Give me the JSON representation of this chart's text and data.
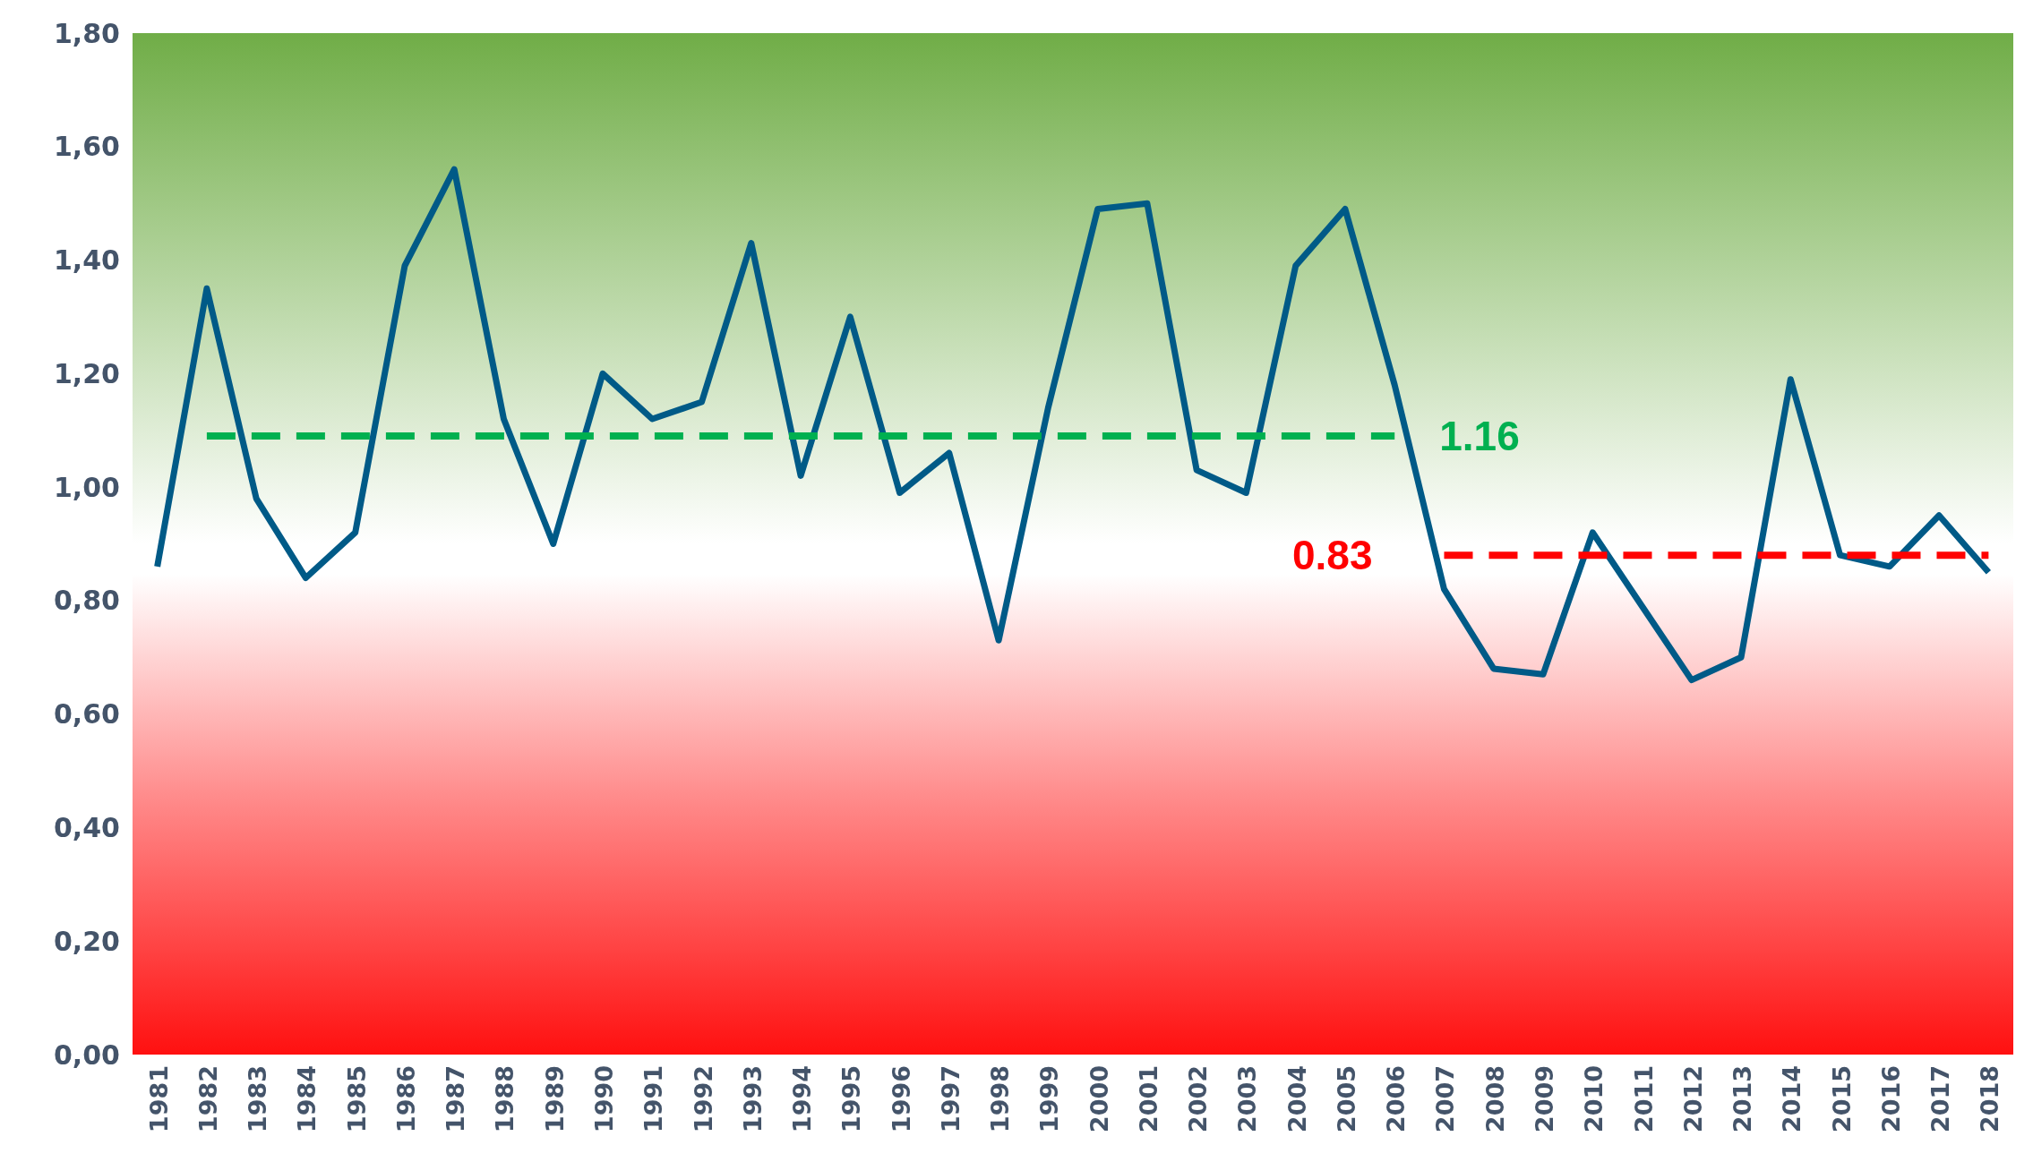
{
  "chart_data": {
    "type": "line",
    "categories": [
      "1981",
      "1982",
      "1983",
      "1984",
      "1985",
      "1986",
      "1987",
      "1988",
      "1989",
      "1990",
      "1991",
      "1992",
      "1993",
      "1994",
      "1995",
      "1996",
      "1997",
      "1998",
      "1999",
      "2000",
      "2001",
      "2002",
      "2003",
      "2004",
      "2005",
      "2006",
      "2007",
      "2008",
      "2009",
      "2010",
      "2011",
      "2012",
      "2013",
      "2014",
      "2015",
      "2016",
      "2017",
      "2018"
    ],
    "series": [
      {
        "color": "#005a87",
        "line_style": "solid",
        "values": [
          0.86,
          1.35,
          0.98,
          0.84,
          0.92,
          1.39,
          1.56,
          1.12,
          0.9,
          1.2,
          1.12,
          1.15,
          1.43,
          1.02,
          1.3,
          0.99,
          1.06,
          0.73,
          1.14,
          1.49,
          1.5,
          1.03,
          0.99,
          1.39,
          1.49,
          1.18,
          0.82,
          0.68,
          0.67,
          0.92,
          0.79,
          0.66,
          0.7,
          1.19,
          0.88,
          0.86,
          0.95,
          0.85
        ]
      },
      {
        "color": "#00b050",
        "line_style": "dashed",
        "values": [
          null,
          1.09,
          1.09,
          1.09,
          1.09,
          1.09,
          1.09,
          1.09,
          1.09,
          1.09,
          1.09,
          1.09,
          1.09,
          1.09,
          1.09,
          1.09,
          1.09,
          1.09,
          1.09,
          1.09,
          1.09,
          1.09,
          1.09,
          1.09,
          1.09,
          1.09,
          null,
          null,
          null,
          null,
          null,
          null,
          null,
          null,
          null,
          null,
          null,
          null
        ]
      },
      {
        "color": "#ff0000",
        "line_style": "dashed",
        "values": [
          null,
          null,
          null,
          null,
          null,
          null,
          null,
          null,
          null,
          null,
          null,
          null,
          null,
          null,
          null,
          null,
          null,
          null,
          null,
          null,
          null,
          null,
          null,
          null,
          null,
          null,
          0.88,
          0.88,
          0.88,
          0.88,
          0.88,
          0.88,
          0.88,
          0.88,
          0.88,
          0.88,
          0.88,
          0.88
        ]
      }
    ],
    "annotations": [
      "1.16",
      "0.83"
    ],
    "ylim": [
      0,
      1.8
    ],
    "yticks": [
      {
        "value": 0,
        "label": "0,00"
      },
      {
        "value": 0.2,
        "label": "0,20"
      },
      {
        "value": 0.4,
        "label": "0,40"
      },
      {
        "value": 0.6,
        "label": "0,60"
      },
      {
        "value": 0.8,
        "label": "0,80"
      },
      {
        "value": 1,
        "label": "1,00"
      },
      {
        "value": 1.2,
        "label": "1,20"
      },
      {
        "value": 1.4,
        "label": "1,40"
      },
      {
        "value": 1.6,
        "label": "1,60"
      },
      {
        "value": 1.8,
        "label": "1,80"
      }
    ],
    "grid": false
  }
}
